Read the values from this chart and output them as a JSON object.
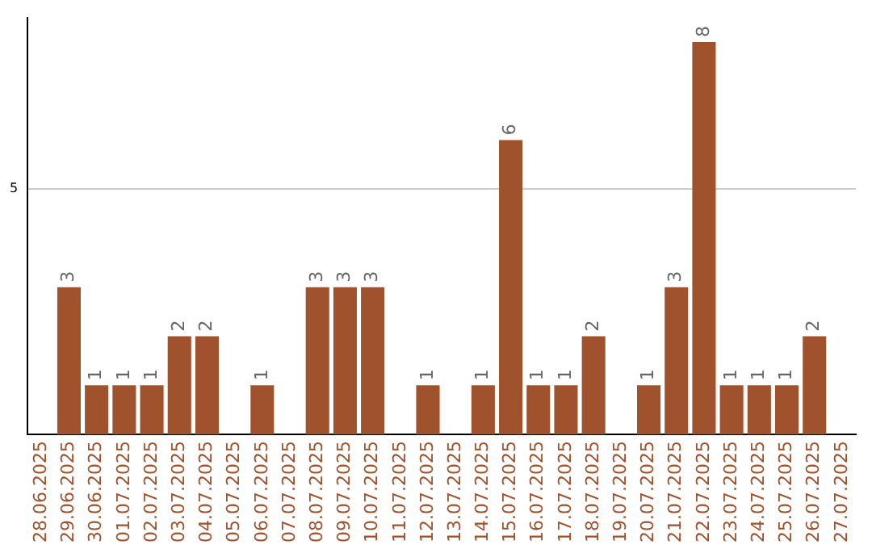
{
  "chart_data": {
    "type": "bar",
    "categories": [
      "28.06.2025",
      "29.06.2025",
      "30.06.2025",
      "01.07.2025",
      "02.07.2025",
      "03.07.2025",
      "04.07.2025",
      "05.07.2025",
      "06.07.2025",
      "07.07.2025",
      "08.07.2025",
      "09.07.2025",
      "10.07.2025",
      "11.07.2025",
      "12.07.2025",
      "13.07.2025",
      "14.07.2025",
      "15.07.2025",
      "16.07.2025",
      "17.07.2025",
      "18.07.2025",
      "19.07.2025",
      "20.07.2025",
      "21.07.2025",
      "22.07.2025",
      "23.07.2025",
      "24.07.2025",
      "25.07.2025",
      "26.07.2025",
      "27.07.2025"
    ],
    "values": [
      null,
      3,
      1,
      1,
      1,
      2,
      2,
      null,
      1,
      null,
      3,
      3,
      3,
      null,
      1,
      null,
      1,
      6,
      1,
      1,
      2,
      null,
      1,
      3,
      8,
      1,
      1,
      1,
      2,
      null
    ],
    "color": "#a0522d",
    "ylim": [
      0,
      8.5
    ],
    "yticks": [
      5
    ],
    "grid": "y",
    "legend": false,
    "data_labels": true
  }
}
